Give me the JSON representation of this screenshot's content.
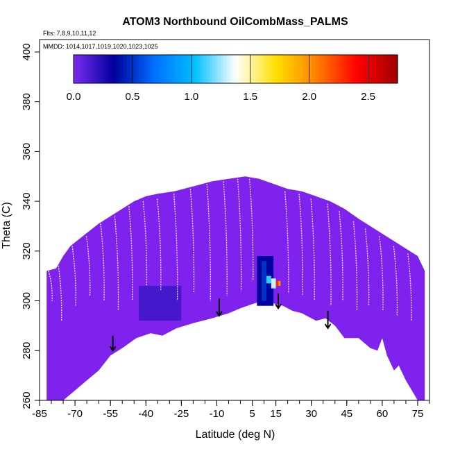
{
  "chart_data": {
    "type": "heatmap",
    "title": "ATOM3 Northbound OilCombMass_PALMS",
    "flights_label": "Flts: 7,8,9,10,11,12",
    "dates_label": "MMDD: 1014,1017,1019,1020,1023,1025",
    "xlabel": "Latitude (deg N)",
    "ylabel": "Theta (C)",
    "xlim": [
      -85,
      80
    ],
    "ylim": [
      260,
      405
    ],
    "x_ticks": [
      -85,
      -70,
      -55,
      -40,
      -25,
      -10,
      5,
      15,
      30,
      45,
      60,
      75
    ],
    "y_ticks": [
      260,
      280,
      300,
      320,
      340,
      360,
      380,
      400
    ],
    "colorbar": {
      "min": 0,
      "max": 2.75,
      "ticks": [
        0.0,
        0.5,
        1.0,
        1.5,
        2.0,
        2.5
      ],
      "tick_labels": [
        "0.0",
        "0.5",
        "1.0",
        "1.5",
        "2.0",
        "2.5"
      ],
      "colors": [
        "#7b2cf0",
        "#00009c",
        "#0070ff",
        "#00c0ff",
        "#ffffff",
        "#ffe000",
        "#ff8000",
        "#ff0000",
        "#a00000"
      ]
    },
    "fill_color": "#7f22ee",
    "curtain_top": [
      [
        -82,
        312
      ],
      [
        -78,
        313
      ],
      [
        -75,
        318
      ],
      [
        -72,
        322
      ],
      [
        -68,
        325
      ],
      [
        -64,
        328
      ],
      [
        -60,
        331
      ],
      [
        -55,
        334
      ],
      [
        -50,
        337
      ],
      [
        -45,
        340
      ],
      [
        -40,
        342
      ],
      [
        -35,
        343
      ],
      [
        -28,
        344
      ],
      [
        -20,
        346
      ],
      [
        -12,
        348
      ],
      [
        -5,
        349
      ],
      [
        2,
        350
      ],
      [
        8,
        349
      ],
      [
        14,
        347
      ],
      [
        20,
        345
      ],
      [
        26,
        344
      ],
      [
        32,
        342
      ],
      [
        38,
        340
      ],
      [
        44,
        337
      ],
      [
        50,
        333
      ],
      [
        55,
        330
      ],
      [
        60,
        327
      ],
      [
        65,
        324
      ],
      [
        70,
        321
      ],
      [
        75,
        318
      ],
      [
        78,
        312
      ]
    ],
    "curtain_bottom": [
      [
        78,
        260
      ],
      [
        75,
        260
      ],
      [
        70,
        268
      ],
      [
        67,
        274
      ],
      [
        65,
        272
      ],
      [
        62,
        278
      ],
      [
        60,
        285
      ],
      [
        58,
        280
      ],
      [
        55,
        281
      ],
      [
        50,
        285
      ],
      [
        44,
        285
      ],
      [
        40,
        290
      ],
      [
        36,
        293
      ],
      [
        32,
        292
      ],
      [
        26,
        295
      ],
      [
        22,
        296
      ],
      [
        18,
        298
      ],
      [
        14,
        299
      ],
      [
        10,
        300
      ],
      [
        6,
        299
      ],
      [
        0,
        297
      ],
      [
        -5,
        295
      ],
      [
        -12,
        293
      ],
      [
        -20,
        291
      ],
      [
        -27,
        289
      ],
      [
        -33,
        286
      ],
      [
        -38,
        287
      ],
      [
        -44,
        285
      ],
      [
        -50,
        281
      ],
      [
        -55,
        278
      ],
      [
        -60,
        272
      ],
      [
        -65,
        268
      ],
      [
        -70,
        264
      ],
      [
        -75,
        260
      ],
      [
        -82,
        260
      ]
    ],
    "highlights": [
      {
        "x0": -43,
        "x1": -25,
        "y0": 292,
        "y1": 306,
        "value": 0.15
      },
      {
        "x0": 7,
        "x1": 14,
        "y0": 298,
        "y1": 318,
        "value": 0.35
      },
      {
        "x0": 9,
        "x1": 11,
        "y0": 300,
        "y1": 316,
        "value": 0.5
      },
      {
        "x0": 11,
        "x1": 13,
        "y0": 307,
        "y1": 310,
        "value": 1.1
      },
      {
        "x0": 13,
        "x1": 15,
        "y0": 305,
        "y1": 309,
        "value": 1.3
      },
      {
        "x0": 15,
        "x1": 16,
        "y0": 306,
        "y1": 308,
        "value": 2.3
      },
      {
        "x0": 16,
        "x1": 17,
        "y0": 306,
        "y1": 308,
        "value": 2.0
      }
    ],
    "arrows": [
      {
        "x": -54,
        "y_top": 286,
        "y_tip": 280
      },
      {
        "x": -9,
        "y_top": 301,
        "y_tip": 294
      },
      {
        "x": 16,
        "y_top": 303,
        "y_tip": 297
      },
      {
        "x": 37,
        "y_top": 296,
        "y_tip": 289
      }
    ],
    "legend": "top"
  }
}
